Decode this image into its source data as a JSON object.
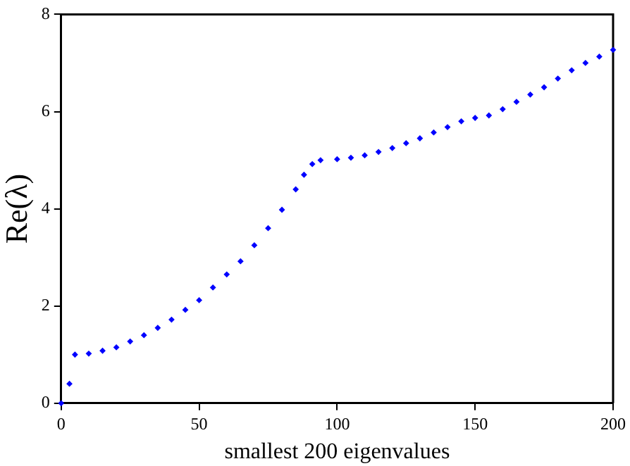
{
  "chart_data": {
    "type": "scatter",
    "xlabel": "smallest 200 eigenvalues",
    "ylabel": "Re(λ)",
    "marker": "diamond",
    "grid": false,
    "legend": false,
    "xlim": [
      0,
      200
    ],
    "xticks": [
      0,
      50,
      100,
      150,
      200
    ],
    "ylim": [
      0,
      8
    ],
    "yticks": [
      0,
      2,
      4,
      6,
      8
    ],
    "series": [
      {
        "color": "#0000ff",
        "x": [
          0,
          3,
          5,
          10,
          15,
          20,
          25,
          30,
          35,
          40,
          45,
          50,
          55,
          60,
          65,
          70,
          75,
          80,
          85,
          88,
          91,
          94,
          100,
          105,
          110,
          115,
          120,
          125,
          130,
          135,
          140,
          145,
          150,
          155,
          160,
          165,
          170,
          175,
          180,
          185,
          190,
          195,
          200
        ],
        "values": [
          0,
          0.4,
          1.0,
          1.02,
          1.08,
          1.15,
          1.27,
          1.4,
          1.55,
          1.72,
          1.92,
          2.12,
          2.38,
          2.65,
          2.92,
          3.25,
          3.6,
          3.98,
          4.4,
          4.7,
          4.92,
          5.0,
          5.02,
          5.05,
          5.1,
          5.17,
          5.25,
          5.35,
          5.45,
          5.57,
          5.68,
          5.8,
          5.87,
          5.92,
          6.05,
          6.2,
          6.35,
          6.5,
          6.68,
          6.85,
          7.0,
          7.13,
          7.27
        ]
      }
    ]
  }
}
